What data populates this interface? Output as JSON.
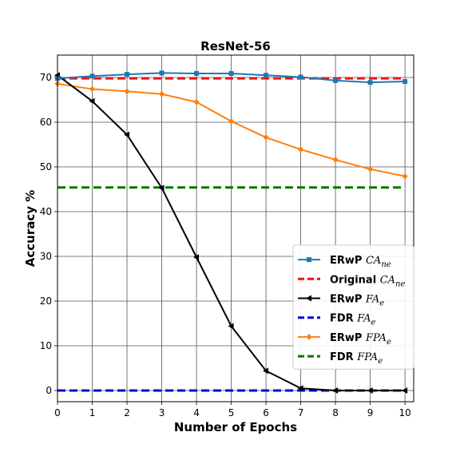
{
  "chart_data": {
    "type": "line",
    "title": "ResNet-56",
    "xlabel": "Number of Epochs",
    "ylabel": "Accuracy %",
    "x": [
      0,
      1,
      2,
      3,
      4,
      5,
      6,
      7,
      8,
      9,
      10
    ],
    "xlim": [
      0,
      10.25
    ],
    "ylim": [
      -2.5,
      75
    ],
    "xticks": [
      "0",
      "1",
      "2",
      "3",
      "4",
      "5",
      "6",
      "7",
      "8",
      "9",
      "10"
    ],
    "yticks": [
      "0",
      "10",
      "20",
      "30",
      "40",
      "50",
      "60",
      "70"
    ],
    "grid": true,
    "legend_position": "center-right",
    "series": [
      {
        "name": "ERwP",
        "name_sym": "CA",
        "name_sub": "ne",
        "color": "#1f77b4",
        "marker": "square",
        "dashed": false,
        "values": [
          69.8,
          70.3,
          70.7,
          71.0,
          70.9,
          70.9,
          70.5,
          70.1,
          69.3,
          68.9,
          69.1
        ]
      },
      {
        "name": "Original",
        "name_sym": "CA",
        "name_sub": "ne",
        "color": "#ee1111",
        "marker": "none",
        "dashed": true,
        "values": [
          69.8,
          69.8,
          69.8,
          69.8,
          69.8,
          69.8,
          69.8,
          69.8,
          69.8,
          69.8,
          69.8
        ]
      },
      {
        "name": "ERwP",
        "name_sym": "FA",
        "name_sub": "e",
        "color": "#000000",
        "marker": "triangle-left",
        "dashed": false,
        "values": [
          70.5,
          64.7,
          57.2,
          45.3,
          29.8,
          14.4,
          4.4,
          0.5,
          0.0,
          0.0,
          0.0
        ]
      },
      {
        "name": "FDR",
        "name_sym": "FA",
        "name_sub": "e",
        "color": "#0000dd",
        "marker": "none",
        "dashed": true,
        "values": [
          0,
          0,
          0,
          0,
          0,
          0,
          0,
          0,
          0,
          0,
          0
        ]
      },
      {
        "name": "ERwP",
        "name_sym": "FPA",
        "name_sub": "e",
        "color": "#ff7f0e",
        "marker": "diamond",
        "dashed": false,
        "values": [
          68.6,
          67.4,
          66.9,
          66.3,
          64.5,
          60.2,
          56.6,
          53.9,
          51.6,
          49.5,
          47.9
        ]
      },
      {
        "name": "FDR",
        "name_sym": "FPA",
        "name_sub": "e",
        "color": "#007700",
        "marker": "none",
        "dashed": true,
        "values": [
          45.4,
          45.4,
          45.4,
          45.4,
          45.4,
          45.4,
          45.4,
          45.4,
          45.4,
          45.4,
          45.4
        ]
      }
    ]
  }
}
